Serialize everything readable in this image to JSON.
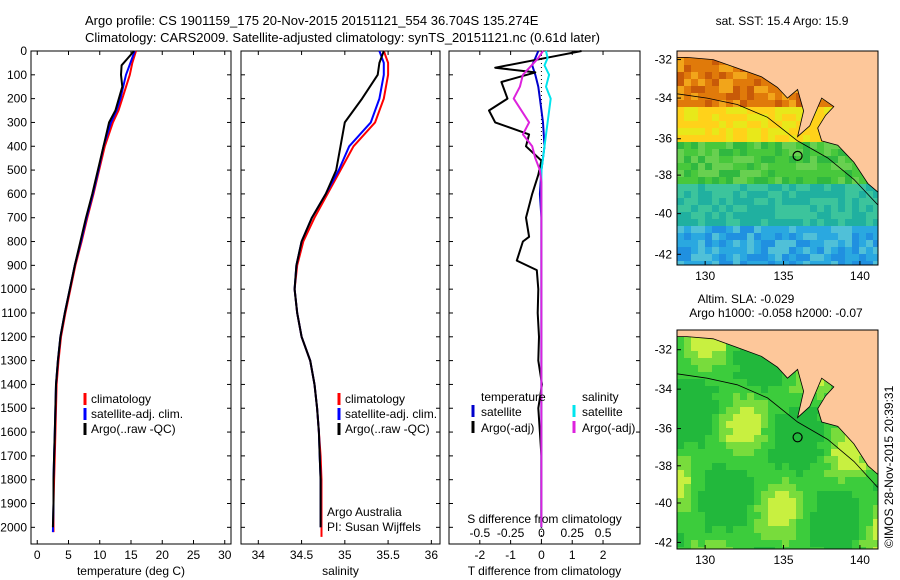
{
  "header": {
    "line1": "Argo profile: CS 1901159_175 20-Nov-2015 20151121_554 36.704S 135.274E",
    "line2": "Climatology: CARS2009. Satellite-adjusted climatology: synTS_20151121.nc (0.61d later)"
  },
  "chart_data": [
    {
      "type": "line",
      "name": "temperature",
      "xlabel": "temperature (deg C)",
      "ylabel": "",
      "xlim": [
        -1,
        31
      ],
      "ylim": [
        2070,
        0
      ],
      "xticks": [
        0,
        5,
        10,
        15,
        20,
        25,
        30
      ],
      "yticks": [
        0,
        100,
        200,
        300,
        400,
        500,
        600,
        700,
        800,
        900,
        1000,
        1100,
        1200,
        1300,
        1400,
        1500,
        1600,
        1700,
        1800,
        1900,
        2000
      ],
      "legend": [
        "climatology",
        "satellite-adj. clim.",
        "Argo(..raw -QC)"
      ],
      "legend_position": "center-right",
      "series": [
        {
          "name": "climatology",
          "color": "#ff0000",
          "x": [
            15.8,
            15.2,
            14.8,
            13.6,
            13.0,
            12.1,
            10.8,
            9.9,
            9.0,
            8.0,
            7.1,
            6.1,
            5.3,
            4.5,
            3.8,
            3.4,
            3.1,
            3.0,
            2.9,
            2.8,
            2.7,
            2.6,
            2.6
          ],
          "y": [
            0,
            50,
            100,
            200,
            250,
            300,
            400,
            500,
            600,
            700,
            800,
            900,
            1000,
            1100,
            1200,
            1300,
            1400,
            1500,
            1600,
            1700,
            1800,
            1900,
            2020
          ]
        },
        {
          "name": "satellite-adj. clim.",
          "color": "#0000ff",
          "x": [
            15.6,
            14.9,
            14.2,
            13.3,
            12.7,
            11.8,
            10.6,
            9.8,
            8.9,
            7.9,
            7.0,
            6.0,
            5.2,
            4.4,
            3.7,
            3.3,
            3.0,
            2.9,
            2.8,
            2.7,
            2.6,
            2.6,
            2.5
          ],
          "y": [
            0,
            50,
            100,
            200,
            250,
            300,
            400,
            500,
            600,
            700,
            800,
            900,
            1000,
            1100,
            1200,
            1300,
            1400,
            1500,
            1600,
            1700,
            1800,
            1900,
            2020
          ]
        },
        {
          "name": "Argo(..raw -QC)",
          "color": "#000000",
          "x": [
            15.5,
            13.5,
            13.4,
            13.6,
            12.5,
            11.5,
            10.6,
            9.7,
            8.8,
            7.8,
            6.9,
            6.0,
            5.2,
            4.4,
            3.7,
            3.3,
            3.0,
            2.9,
            2.8,
            2.7,
            2.6,
            2.6,
            2.5
          ],
          "y": [
            0,
            60,
            100,
            150,
            250,
            300,
            400,
            500,
            600,
            700,
            800,
            900,
            1000,
            1100,
            1200,
            1300,
            1400,
            1500,
            1600,
            1700,
            1800,
            1900,
            2000
          ]
        }
      ]
    },
    {
      "type": "line",
      "name": "salinity",
      "xlabel": "salinity",
      "ylabel": "",
      "xlim": [
        33.8,
        36.1
      ],
      "ylim": [
        2070,
        0
      ],
      "xticks": [
        34,
        34.5,
        35,
        35.5,
        36
      ],
      "legend": [
        "climatology",
        "satellite-adj. clim.",
        "Argo(..raw -QC)"
      ],
      "legend_position": "center-right",
      "annotation": [
        "Argo Australia",
        "PI: Susan Wijffels"
      ],
      "series": [
        {
          "name": "climatology",
          "color": "#ff0000",
          "x": [
            35.45,
            35.5,
            35.5,
            35.45,
            35.35,
            35.1,
            34.95,
            34.8,
            34.65,
            34.52,
            34.45,
            34.42,
            34.45,
            34.5,
            34.6,
            34.65,
            34.68,
            34.7,
            34.72,
            34.73,
            34.73,
            34.73,
            34.73
          ],
          "y": [
            0,
            50,
            100,
            200,
            300,
            400,
            500,
            600,
            700,
            800,
            900,
            1000,
            1100,
            1200,
            1300,
            1400,
            1500,
            1600,
            1700,
            1800,
            1900,
            2000,
            2040
          ]
        },
        {
          "name": "satellite-adj. clim.",
          "color": "#0000ff",
          "x": [
            35.4,
            35.45,
            35.45,
            35.4,
            35.3,
            35.05,
            34.93,
            34.78,
            34.62,
            34.5,
            34.44,
            34.42,
            34.45,
            34.5,
            34.6,
            34.65,
            34.68,
            34.7,
            34.71,
            34.72,
            34.72,
            34.72
          ],
          "y": [
            0,
            50,
            100,
            200,
            300,
            400,
            500,
            600,
            700,
            800,
            900,
            1000,
            1100,
            1200,
            1300,
            1400,
            1500,
            1600,
            1700,
            1800,
            1900,
            2000
          ]
        },
        {
          "name": "Argo(..raw -QC)",
          "color": "#000000",
          "x": [
            35.45,
            35.4,
            35.38,
            35.2,
            35.0,
            34.95,
            34.9,
            34.78,
            34.62,
            34.5,
            34.44,
            34.42,
            34.45,
            34.5,
            34.6,
            34.65,
            34.68,
            34.7,
            34.71,
            34.72,
            34.72,
            34.72
          ],
          "y": [
            0,
            50,
            100,
            200,
            300,
            400,
            500,
            600,
            700,
            800,
            900,
            1000,
            1100,
            1200,
            1300,
            1400,
            1500,
            1600,
            1700,
            1800,
            1900,
            2000
          ]
        }
      ]
    },
    {
      "type": "line",
      "name": "differences",
      "xlabel": "T difference from climatology",
      "xlabel_top": "S difference from climatology",
      "ylabel": "",
      "xlim": [
        -3,
        3.2
      ],
      "ylim": [
        2070,
        0
      ],
      "xticks": [
        -2,
        -1,
        0,
        1,
        2
      ],
      "xticks_s": [
        "-0.5",
        "-0.25",
        "0",
        "0.25",
        "0.5"
      ],
      "xticks_s_pos": [
        -2,
        -1,
        0,
        1,
        2
      ],
      "legend_temperature": {
        "title": "temperature",
        "items": [
          "satellite",
          "Argo(-adj)"
        ]
      },
      "legend_salinity": {
        "title": "salinity",
        "items": [
          "satellite",
          "Argo(-adj)"
        ]
      },
      "series": [
        {
          "name": "temperature satellite",
          "color": "#0000cc",
          "x": [
            -0.1,
            -0.2,
            -0.3,
            -0.2,
            -0.1,
            -0.05,
            0.05,
            0.1,
            0.0,
            -0.05,
            0,
            0,
            0,
            0,
            0,
            0,
            0,
            0,
            0,
            0
          ],
          "y": [
            0,
            30,
            60,
            100,
            150,
            200,
            300,
            400,
            500,
            600,
            700,
            900,
            1100,
            1300,
            1500,
            1600,
            1700,
            1800,
            1900,
            2000
          ]
        },
        {
          "name": "temperature Argo(-adj)",
          "color": "#000000",
          "x": [
            1.3,
            0.5,
            -1.5,
            -0.2,
            -1.3,
            -1.1,
            -1.7,
            -1.5,
            -0.4,
            -0.5,
            0.0,
            -0.1,
            -0.3,
            -0.5,
            -0.4,
            -0.6,
            -0.8,
            -0.15,
            -0.1,
            -0.12,
            -0.08,
            -0.1,
            0.02,
            -0.1,
            -0.05,
            0,
            0,
            0,
            0
          ],
          "y": [
            0,
            20,
            70,
            90,
            130,
            200,
            250,
            300,
            350,
            400,
            460,
            520,
            600,
            700,
            780,
            800,
            880,
            920,
            1000,
            1100,
            1200,
            1300,
            1400,
            1500,
            1600,
            1700,
            1800,
            1900,
            2000
          ]
        },
        {
          "name": "salinity satellite",
          "color": "#00e5ee",
          "x": [
            0.15,
            0.2,
            0.1,
            0.25,
            0.15,
            0.3,
            0.2,
            0.1,
            0.05,
            0,
            0,
            0,
            0,
            0,
            0,
            0,
            0,
            0,
            0
          ],
          "y": [
            0,
            30,
            60,
            100,
            150,
            200,
            300,
            400,
            450,
            500,
            600,
            800,
            1000,
            1200,
            1400,
            1600,
            1800,
            1900,
            2000
          ]
        },
        {
          "name": "salinity Argo(-adj)",
          "color": "#dd22dd",
          "x": [
            0.05,
            -0.1,
            -0.6,
            -0.7,
            -0.9,
            -0.4,
            -0.6,
            -0.3,
            -0.2,
            -0.05,
            0,
            0,
            0,
            0,
            0,
            0,
            0,
            0,
            0
          ],
          "y": [
            0,
            30,
            100,
            150,
            200,
            300,
            350,
            400,
            450,
            500,
            550,
            600,
            800,
            1000,
            1200,
            1400,
            1600,
            1800,
            2000
          ]
        }
      ]
    }
  ],
  "maps": {
    "sst": {
      "title": "sat. SST: 15.4 Argo: 15.9",
      "xticks": [
        "130",
        "135",
        "140"
      ],
      "yticks": [
        "-32",
        "-34",
        "-36",
        "-38",
        "-40",
        "-42"
      ]
    },
    "sla": {
      "title_line1": "Altim. SLA: -0.029",
      "title_line2": "Argo h1000: -0.058 h2000: -0.07",
      "xticks": [
        "130",
        "135",
        "140"
      ],
      "yticks": [
        "-32",
        "-34",
        "-36",
        "-38",
        "-40",
        "-42"
      ]
    }
  },
  "credit": "©IMOS 28-Nov-2015 20:39:31"
}
